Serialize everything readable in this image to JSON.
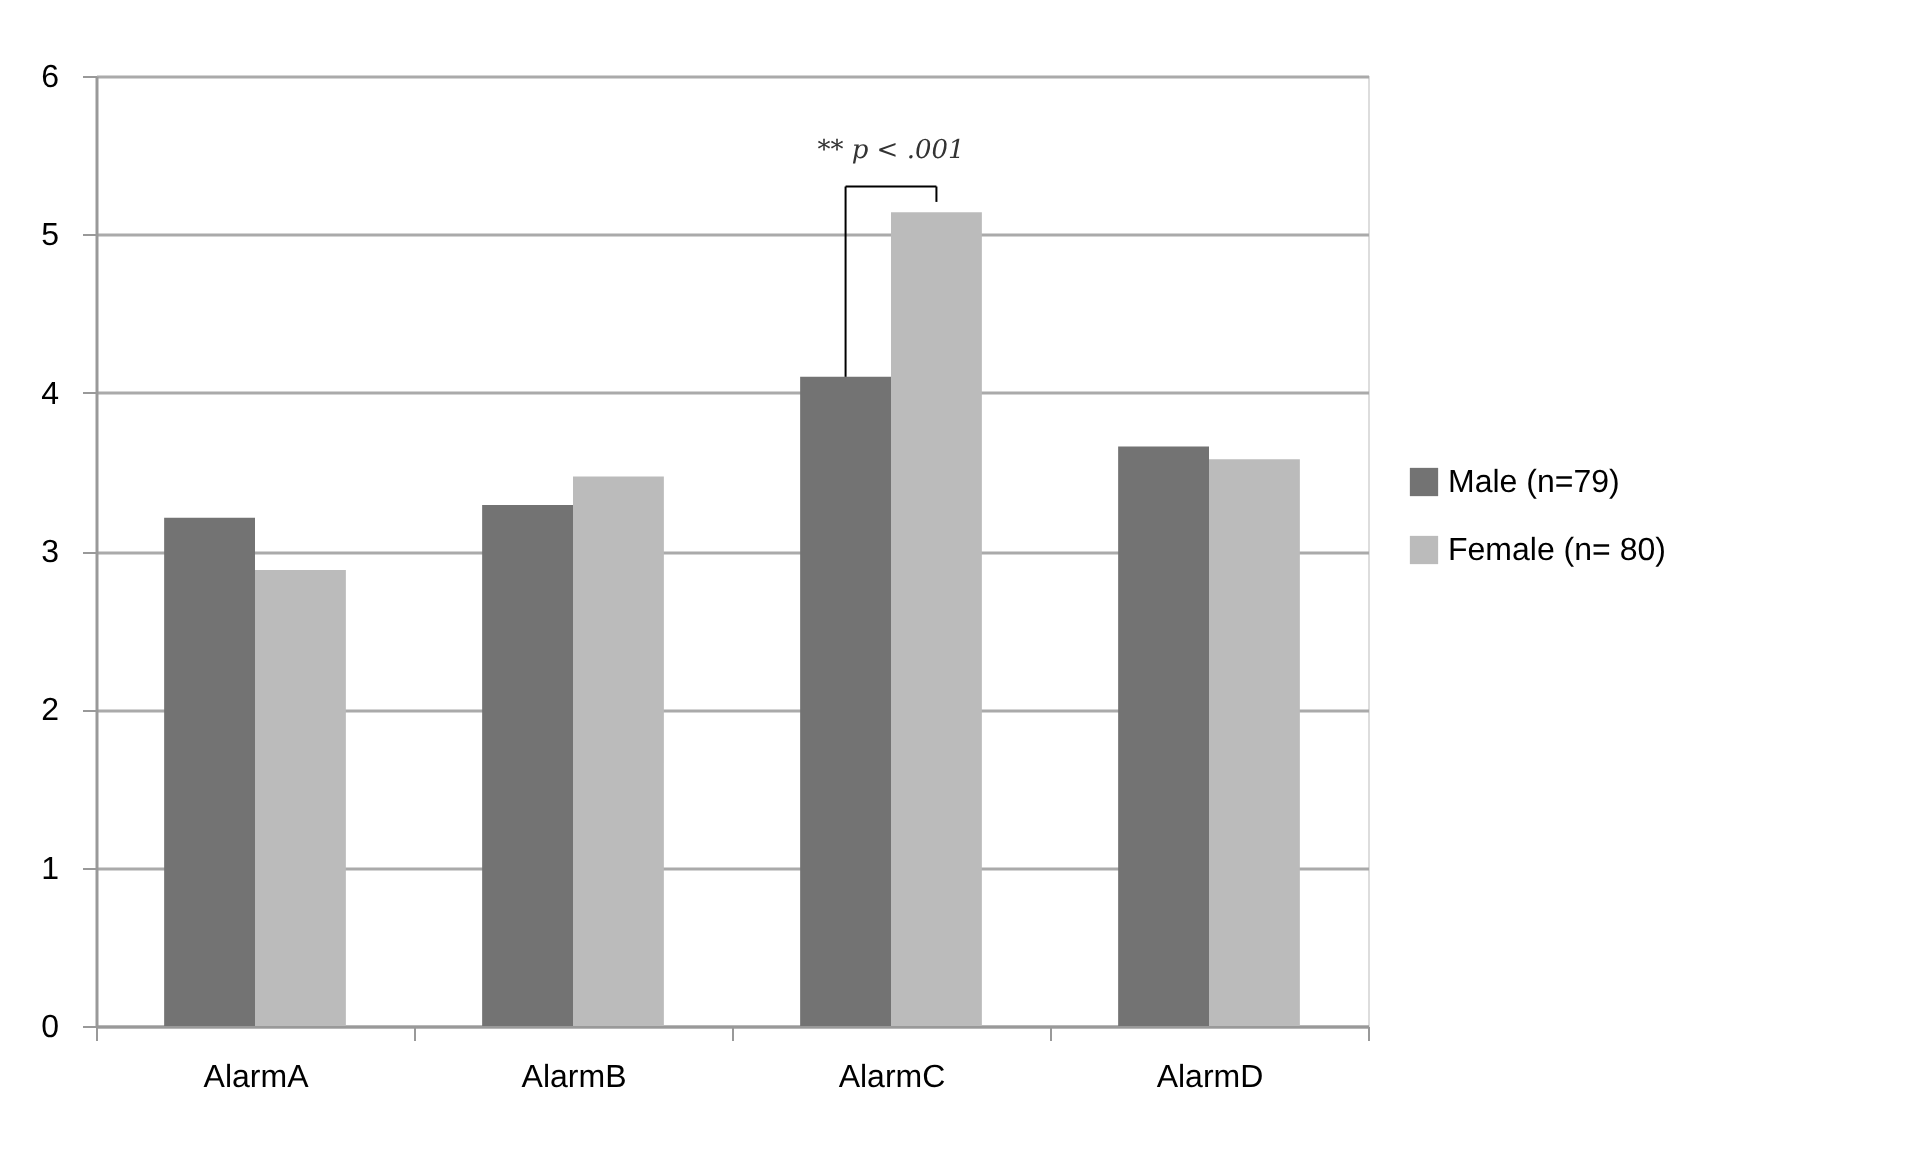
{
  "chart_data": {
    "type": "bar",
    "categories": [
      "AlarmA",
      "AlarmB",
      "AlarmC",
      "AlarmD"
    ],
    "series": [
      {
        "name": "Male (n=79)",
        "color": "#737373",
        "values": [
          3.21,
          3.29,
          4.1,
          3.66
        ]
      },
      {
        "name": "Female (n= 80)",
        "color": "#bbbbbb",
        "values": [
          2.88,
          3.47,
          5.14,
          3.58
        ]
      }
    ],
    "ylim": [
      0,
      6
    ],
    "yticks": [
      0,
      1,
      2,
      3,
      4,
      5,
      6
    ],
    "grid": "y",
    "legend": "right",
    "annotations": [
      {
        "text": "** p < .001",
        "x": "AlarmC",
        "y": 5.14
      }
    ]
  }
}
